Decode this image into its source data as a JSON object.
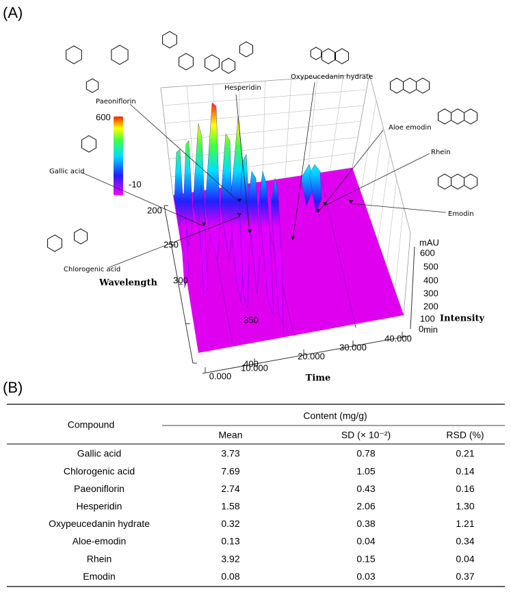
{
  "panel_a": {
    "label": "(A)",
    "compounds": [
      "Paeoniflorin",
      "Hesperidin",
      "Oxypeucedanin hydrate",
      "Aloe emodin",
      "Gallic acid",
      "Rhein",
      "Emodin",
      "Chlorogenic acid"
    ],
    "color_scale": {
      "max": "600",
      "min": "-10"
    },
    "wavelength_axis": {
      "label": "Wavelength",
      "ticks": [
        "200",
        "250",
        "300",
        "350",
        "400"
      ]
    },
    "time_axis": {
      "label": "Time",
      "unit": "min",
      "ticks": [
        "0.000",
        "10.000",
        "20.000",
        "30.000",
        "40.000"
      ]
    },
    "intensity_axis": {
      "label": "Intensity",
      "unit": "mAU",
      "ticks": [
        "600",
        "500",
        "400",
        "300",
        "200",
        "100",
        "0"
      ]
    }
  },
  "panel_b": {
    "label": "(B)",
    "table": {
      "header": {
        "compound": "Compound",
        "content": "Content (mg/g)",
        "columns": [
          "Mean",
          "SD (× 10⁻²)",
          "RSD (%)"
        ]
      },
      "rows": [
        [
          "Gallic acid",
          "3.73",
          "0.78",
          "0.21"
        ],
        [
          "Chlorogenic acid",
          "7.69",
          "1.05",
          "0.14"
        ],
        [
          "Paeoniflorin",
          "2.74",
          "0.43",
          "0.16"
        ],
        [
          "Hesperidin",
          "1.58",
          "2.06",
          "1.30"
        ],
        [
          "Oxypeucedanin hydrate",
          "0.32",
          "0.38",
          "1.21"
        ],
        [
          "Aloe-emodin",
          "0.13",
          "0.04",
          "0.34"
        ],
        [
          "Rhein",
          "3.92",
          "0.15",
          "0.04"
        ],
        [
          "Emodin",
          "0.08",
          "0.03",
          "0.37"
        ]
      ]
    }
  }
}
